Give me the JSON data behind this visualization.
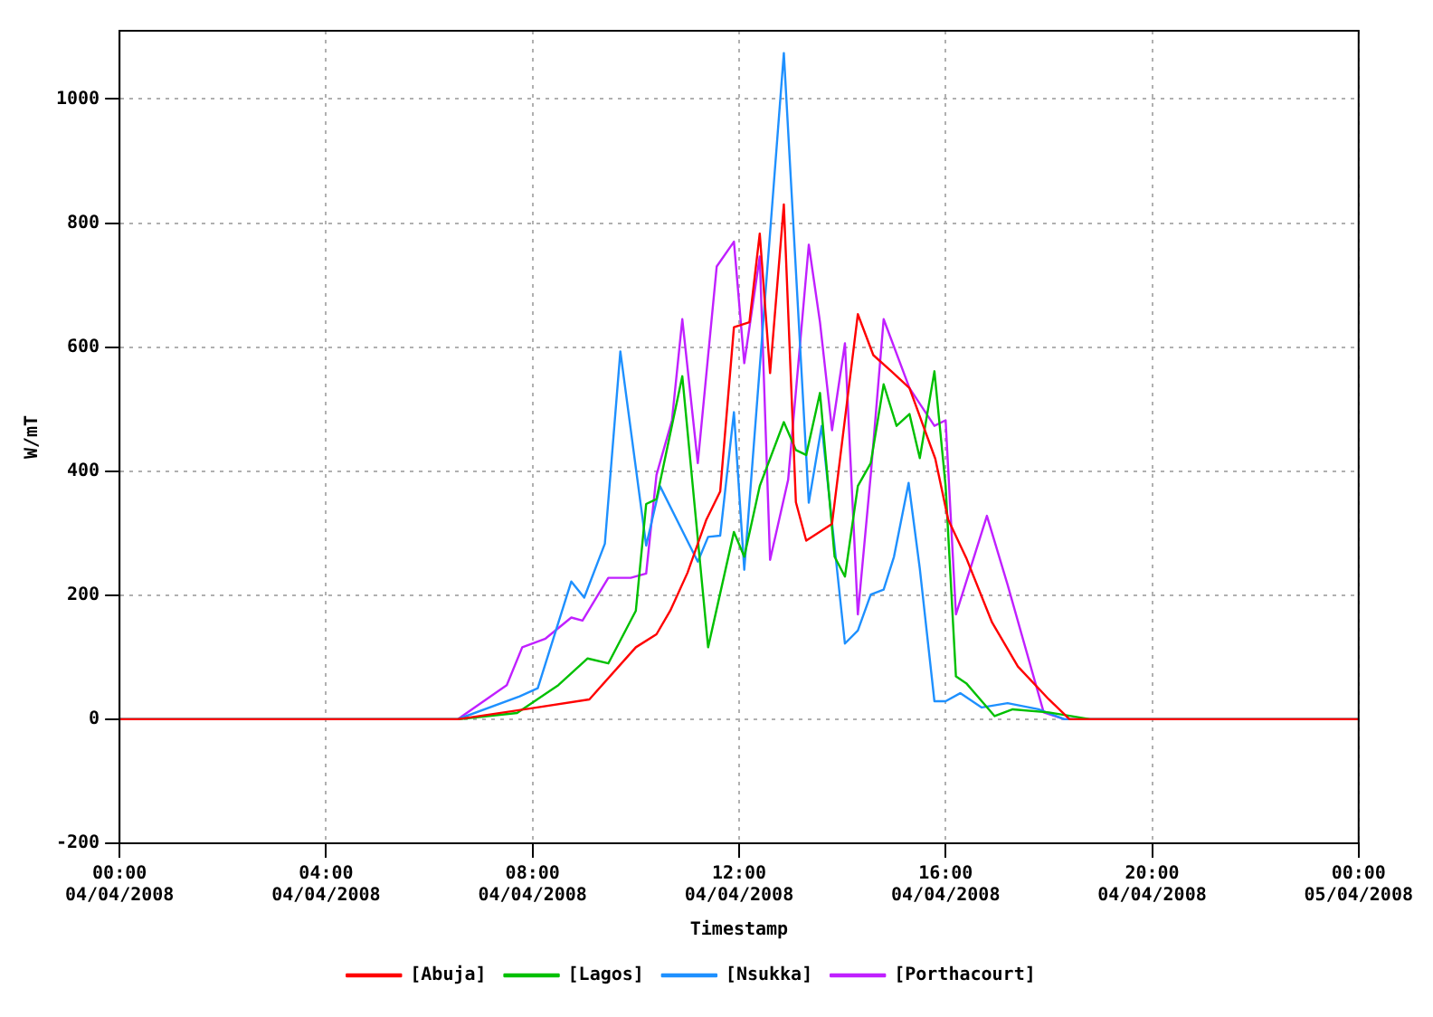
{
  "chart_data": {
    "type": "line",
    "xlabel": "Timestamp",
    "ylabel": "W/mT",
    "xlim": [
      "2008-04-04T00:00",
      "2008-04-05T00:00"
    ],
    "xticks": [
      {
        "value": "2008-04-04T00:00",
        "label": "00:00 04/04/2008"
      },
      {
        "value": "2008-04-04T04:00",
        "label": "04:00 04/04/2008"
      },
      {
        "value": "2008-04-04T08:00",
        "label": "08:00 04/04/2008"
      },
      {
        "value": "2008-04-04T12:00",
        "label": "12:00 04/04/2008"
      },
      {
        "value": "2008-04-04T16:00",
        "label": "16:00 04/04/2008"
      },
      {
        "value": "2008-04-04T20:00",
        "label": "20:00 04/04/2008"
      },
      {
        "value": "2008-04-05T00:00",
        "label": "00:00 05/04/2008"
      }
    ],
    "ylim": [
      -200,
      1110
    ],
    "yticks": [
      -200,
      0,
      200,
      400,
      600,
      800,
      1000
    ],
    "grid": true,
    "legend": "bottom",
    "series": [
      {
        "name": "[Abuja]",
        "color": "#ff0000",
        "x": [
          "2008-04-04T00:00",
          "2008-04-04T06:33",
          "2008-04-04T08:00",
          "2008-04-04T09:06",
          "2008-04-04T10:00",
          "2008-04-04T10:24",
          "2008-04-04T10:40",
          "2008-04-04T11:00",
          "2008-04-04T11:22",
          "2008-04-04T11:38",
          "2008-04-04T11:54",
          "2008-04-04T12:12",
          "2008-04-04T12:24",
          "2008-04-04T12:36",
          "2008-04-04T12:52",
          "2008-04-04T13:06",
          "2008-04-04T13:18",
          "2008-04-04T13:48",
          "2008-04-04T14:18",
          "2008-04-04T14:36",
          "2008-04-04T14:57",
          "2008-04-04T15:18",
          "2008-04-04T15:48",
          "2008-04-04T16:03",
          "2008-04-04T16:24",
          "2008-04-04T16:54",
          "2008-04-04T17:24",
          "2008-04-04T18:00",
          "2008-04-04T18:24",
          "2008-04-05T00:00"
        ],
        "values": [
          0,
          0,
          18,
          32,
          116,
          137,
          175,
          236,
          322,
          367,
          632,
          640,
          783,
          558,
          830,
          350,
          288,
          315,
          653,
          587,
          561,
          534,
          420,
          322,
          260,
          156,
          85,
          32,
          0,
          0
        ]
      },
      {
        "name": "[Lagos]",
        "color": "#00c000",
        "x": [
          "2008-04-04T00:00",
          "2008-04-04T06:33",
          "2008-04-04T07:42",
          "2008-04-04T08:30",
          "2008-04-04T09:04",
          "2008-04-04T09:28",
          "2008-04-04T10:00",
          "2008-04-04T10:12",
          "2008-04-04T10:24",
          "2008-04-04T10:54",
          "2008-04-04T11:24",
          "2008-04-04T11:54",
          "2008-04-04T12:06",
          "2008-04-04T12:24",
          "2008-04-04T12:52",
          "2008-04-04T13:06",
          "2008-04-04T13:18",
          "2008-04-04T13:34",
          "2008-04-04T13:51",
          "2008-04-04T14:03",
          "2008-04-04T14:18",
          "2008-04-04T14:33",
          "2008-04-04T14:48",
          "2008-04-04T15:03",
          "2008-04-04T15:18",
          "2008-04-04T15:30",
          "2008-04-04T15:47",
          "2008-04-04T16:00",
          "2008-04-04T16:12",
          "2008-04-04T16:24",
          "2008-04-04T16:57",
          "2008-04-04T17:18",
          "2008-04-04T18:00",
          "2008-04-04T18:48",
          "2008-04-05T00:00"
        ],
        "values": [
          0,
          0,
          10,
          55,
          98,
          90,
          175,
          347,
          355,
          553,
          116,
          302,
          262,
          376,
          479,
          434,
          426,
          526,
          262,
          230,
          376,
          413,
          540,
          473,
          492,
          421,
          561,
          376,
          69,
          58,
          5,
          16,
          11,
          0,
          0
        ]
      },
      {
        "name": "[Nsukka]",
        "color": "#1e90ff",
        "x": [
          "2008-04-04T00:00",
          "2008-04-04T06:33",
          "2008-04-04T07:45",
          "2008-04-04T08:06",
          "2008-04-04T08:45",
          "2008-04-04T09:00",
          "2008-04-04T09:24",
          "2008-04-04T09:42",
          "2008-04-04T10:12",
          "2008-04-04T10:28",
          "2008-04-04T11:12",
          "2008-04-04T11:24",
          "2008-04-04T11:38",
          "2008-04-04T11:54",
          "2008-04-04T12:06",
          "2008-04-04T12:52",
          "2008-04-04T13:21",
          "2008-04-04T13:36",
          "2008-04-04T14:03",
          "2008-04-04T14:18",
          "2008-04-04T14:33",
          "2008-04-04T14:48",
          "2008-04-04T15:00",
          "2008-04-04T15:17",
          "2008-04-04T15:30",
          "2008-04-04T15:47",
          "2008-04-04T16:00",
          "2008-04-04T16:17",
          "2008-04-04T16:42",
          "2008-04-04T17:12",
          "2008-04-04T17:48",
          "2008-04-04T18:18",
          "2008-04-05T00:00"
        ],
        "values": [
          0,
          0,
          37,
          50,
          222,
          196,
          283,
          593,
          280,
          376,
          254,
          294,
          296,
          495,
          241,
          1074,
          349,
          473,
          122,
          143,
          201,
          209,
          262,
          381,
          243,
          29,
          29,
          42,
          19,
          26,
          16,
          0,
          0
        ]
      },
      {
        "name": "[Porthacourt]",
        "color": "#c020ff",
        "x": [
          "2008-04-04T00:00",
          "2008-04-04T06:33",
          "2008-04-04T07:30",
          "2008-04-04T07:48",
          "2008-04-04T08:15",
          "2008-04-04T08:45",
          "2008-04-04T08:58",
          "2008-04-04T09:28",
          "2008-04-04T09:54",
          "2008-04-04T10:12",
          "2008-04-04T10:24",
          "2008-04-04T10:42",
          "2008-04-04T10:54",
          "2008-04-04T11:12",
          "2008-04-04T11:34",
          "2008-04-04T11:54",
          "2008-04-04T12:06",
          "2008-04-04T12:24",
          "2008-04-04T12:36",
          "2008-04-04T12:57",
          "2008-04-04T13:21",
          "2008-04-04T13:34",
          "2008-04-04T13:48",
          "2008-04-04T14:03",
          "2008-04-04T14:18",
          "2008-04-04T14:33",
          "2008-04-04T14:48",
          "2008-04-04T15:18",
          "2008-04-04T15:47",
          "2008-04-04T16:00",
          "2008-04-04T16:12",
          "2008-04-04T16:48",
          "2008-04-04T17:12",
          "2008-04-04T17:54",
          "2008-04-04T18:18",
          "2008-04-05T00:00"
        ],
        "values": [
          0,
          0,
          55,
          116,
          130,
          164,
          159,
          228,
          228,
          235,
          394,
          482,
          645,
          413,
          730,
          770,
          574,
          746,
          257,
          386,
          765,
          640,
          466,
          606,
          169,
          394,
          645,
          534,
          473,
          482,
          169,
          328,
          217,
          11,
          0,
          0
        ]
      }
    ]
  }
}
